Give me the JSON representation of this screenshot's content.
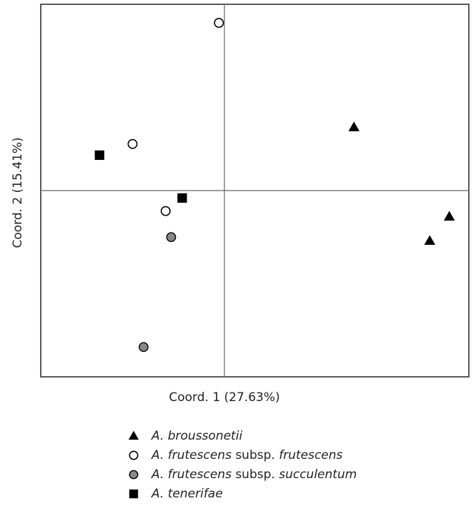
{
  "chart_data": {
    "type": "scatter",
    "xlabel": "Coord. 1 (27.63%)",
    "ylabel": "Coord. 2 (15.41%)",
    "xlim": [
      -1,
      1
    ],
    "ylim": [
      -1,
      1
    ],
    "grid": false,
    "zero_lines": true,
    "legend_placement": "bottom",
    "series": [
      {
        "name": "A. broussonetii",
        "marker": "triangle",
        "color": "#000000",
        "points": [
          {
            "x": 0.53,
            "y": 0.34
          },
          {
            "x": 0.92,
            "y": -0.14
          },
          {
            "x": 0.84,
            "y": -0.27
          }
        ]
      },
      {
        "name": "A. frutescens subsp. frutescens",
        "marker": "circle-open",
        "color": "#ffffff",
        "points": [
          {
            "x": -0.03,
            "y": 0.9
          },
          {
            "x": -0.5,
            "y": 0.25
          },
          {
            "x": -0.32,
            "y": -0.11
          }
        ]
      },
      {
        "name": "A. frutescens subsp. succulentum",
        "marker": "circle-filled",
        "color": "#888888",
        "points": [
          {
            "x": -0.29,
            "y": -0.25
          },
          {
            "x": -0.44,
            "y": -0.84
          }
        ]
      },
      {
        "name": "A. tenerifae",
        "marker": "square",
        "color": "#000000",
        "points": [
          {
            "x": -0.68,
            "y": 0.19
          },
          {
            "x": -0.23,
            "y": -0.04
          }
        ]
      }
    ]
  },
  "legend": {
    "items": [
      {
        "marker": "triangle",
        "parts": [
          {
            "t": "A. broussonetii",
            "i": true
          }
        ]
      },
      {
        "marker": "circle-open",
        "parts": [
          {
            "t": "A. frutescens",
            "i": true
          },
          {
            "t": " subsp. ",
            "i": false
          },
          {
            "t": "frutescens",
            "i": true
          }
        ]
      },
      {
        "marker": "circle-filled",
        "parts": [
          {
            "t": "A. frutescens",
            "i": true
          },
          {
            "t": " subsp. ",
            "i": false
          },
          {
            "t": "succulentum",
            "i": true
          }
        ]
      },
      {
        "marker": "square",
        "parts": [
          {
            "t": "A. tenerifae",
            "i": true
          }
        ]
      }
    ]
  }
}
